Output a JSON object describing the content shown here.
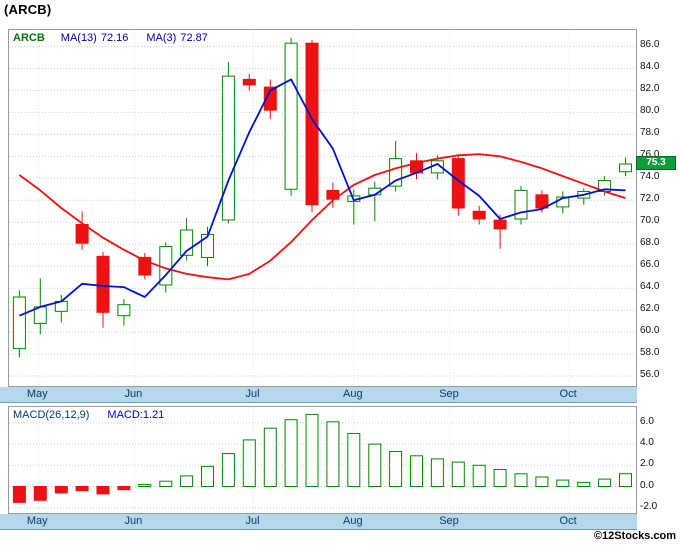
{
  "page": {
    "title": "(ARCB)",
    "copyright": "©12Stocks.com"
  },
  "main_chart": {
    "legend": {
      "symbol": "ARCB",
      "ma13_label": "MA(13)",
      "ma13_value": "72.16",
      "ma3_label": "MA(3)",
      "ma3_value": "72.87"
    },
    "last_price_badge": "75.3"
  },
  "macd_chart": {
    "legend": {
      "name": "MACD(26,12,9)",
      "value": "MACD:1.21"
    }
  },
  "colors": {
    "up_green": "#008800",
    "down_red": "#ee1111",
    "ma3_blue": "#0011cc",
    "ma13_red": "#ee1111",
    "badge_green": "#0b9e3c",
    "badge_border": "#056622",
    "band_blue": "#b5d8ec",
    "band_text": "#0a3a6a",
    "legend_blue": "#0000bb",
    "grid": "#cccccc"
  },
  "chart_data": [
    {
      "type": "candlestick",
      "title": "(ARCB)",
      "symbol": "ARCB",
      "legend": [
        "ARCB",
        "MA(13) 72.16",
        "MA(3) 72.87"
      ],
      "ylim": [
        55.1,
        87.5
      ],
      "y_ticks": [
        86,
        84,
        82,
        80,
        78,
        76,
        74,
        72,
        70,
        68,
        66,
        64,
        62,
        60,
        58,
        56
      ],
      "months": [
        {
          "label": "May",
          "i": 0.9
        },
        {
          "label": "Jun",
          "i": 5.5
        },
        {
          "label": "Jul",
          "i": 11.2
        },
        {
          "label": "Aug",
          "i": 16.0
        },
        {
          "label": "Sep",
          "i": 20.6
        },
        {
          "label": "Oct",
          "i": 26.3
        }
      ],
      "candles_ohlc": [
        [
          58.5,
          63.8,
          57.7,
          63.2
        ],
        [
          60.8,
          64.9,
          59.8,
          62.3
        ],
        [
          61.9,
          63.4,
          60.9,
          62.8
        ],
        [
          69.8,
          71.0,
          67.5,
          68.1
        ],
        [
          66.9,
          67.3,
          60.4,
          61.8
        ],
        [
          61.5,
          63.0,
          60.6,
          62.5
        ],
        [
          66.8,
          67.2,
          64.8,
          65.2
        ],
        [
          64.3,
          68.2,
          63.6,
          67.8
        ],
        [
          67.0,
          70.4,
          66.5,
          69.3
        ],
        [
          66.8,
          69.6,
          66.0,
          68.9
        ],
        [
          70.2,
          84.6,
          69.9,
          83.3
        ],
        [
          83.0,
          83.5,
          82.0,
          82.5
        ],
        [
          82.3,
          83.0,
          79.4,
          80.2
        ],
        [
          73.0,
          86.8,
          72.4,
          86.3
        ],
        [
          86.3,
          86.6,
          70.9,
          71.6
        ],
        [
          72.9,
          73.6,
          71.3,
          72.1
        ],
        [
          71.9,
          73.0,
          69.8,
          72.4
        ],
        [
          72.5,
          73.7,
          70.1,
          73.1
        ],
        [
          73.3,
          77.4,
          72.8,
          75.8
        ],
        [
          75.6,
          76.3,
          73.9,
          74.5
        ],
        [
          74.5,
          76.1,
          73.9,
          75.6
        ],
        [
          75.8,
          76.2,
          70.6,
          71.3
        ],
        [
          71.0,
          71.5,
          69.8,
          70.3
        ],
        [
          70.2,
          70.7,
          67.6,
          69.4
        ],
        [
          70.3,
          73.3,
          69.8,
          72.9
        ],
        [
          72.5,
          72.9,
          70.9,
          71.3
        ],
        [
          71.4,
          72.8,
          70.8,
          72.3
        ],
        [
          72.2,
          73.1,
          71.6,
          72.8
        ],
        [
          72.8,
          74.2,
          72.4,
          73.8
        ],
        [
          74.6,
          75.9,
          74.2,
          75.3
        ]
      ],
      "ma3": [
        61.5,
        62.3,
        62.8,
        64.4,
        64.2,
        64.1,
        63.2,
        65.2,
        67.4,
        68.7,
        73.8,
        78.2,
        82.0,
        83.0,
        79.4,
        76.7,
        72.0,
        72.5,
        73.8,
        74.5,
        75.3,
        73.8,
        72.4,
        70.3,
        70.9,
        71.2,
        72.2,
        72.5,
        73.0,
        72.9
      ],
      "ma13": [
        74.3,
        72.9,
        71.3,
        69.9,
        68.6,
        67.5,
        66.5,
        65.8,
        65.3,
        65.0,
        64.8,
        65.3,
        66.5,
        68.2,
        70.2,
        72.0,
        73.4,
        74.3,
        74.9,
        75.4,
        75.8,
        76.1,
        76.2,
        76.0,
        75.5,
        74.9,
        74.2,
        73.5,
        72.8,
        72.2
      ],
      "last_price": 75.3
    },
    {
      "type": "bar",
      "title": "MACD(26,12,9)",
      "ylabel": "MACD",
      "ylim": [
        -2.5,
        7.5
      ],
      "y_ticks": [
        6,
        4,
        2,
        0,
        -2
      ],
      "values": [
        -1.5,
        -1.3,
        -0.6,
        -0.4,
        -0.7,
        -0.3,
        0.2,
        0.5,
        1.0,
        1.9,
        3.1,
        4.4,
        5.5,
        6.3,
        6.8,
        6.1,
        5.0,
        4.0,
        3.3,
        2.9,
        2.6,
        2.3,
        2.0,
        1.6,
        1.2,
        0.9,
        0.6,
        0.4,
        0.7,
        1.21
      ],
      "last_value": 1.21
    }
  ]
}
